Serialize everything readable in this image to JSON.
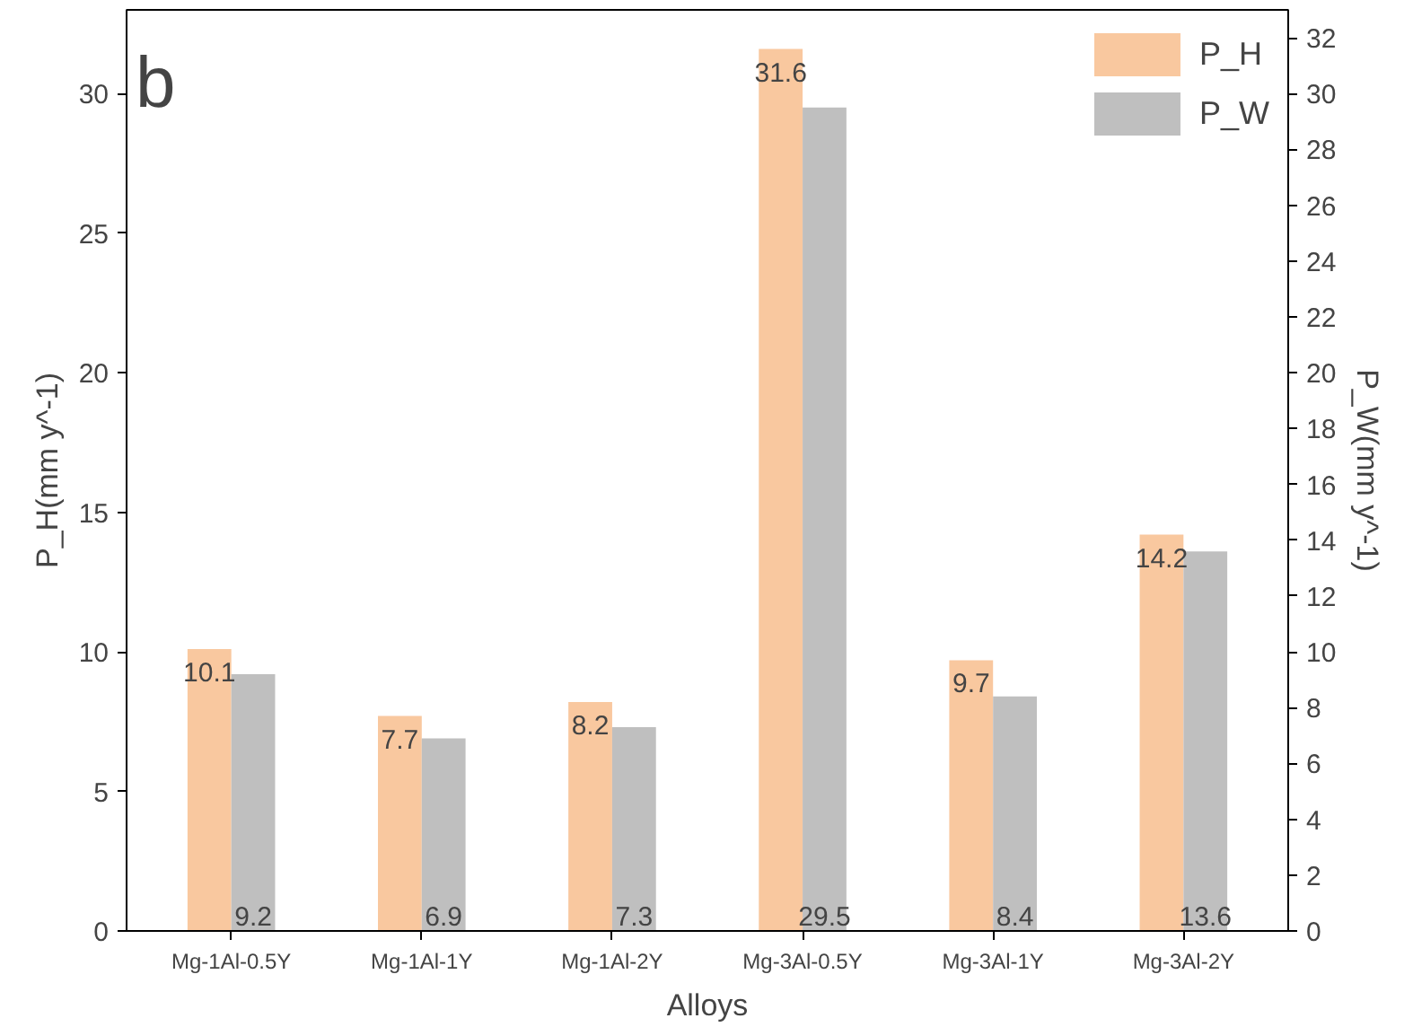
{
  "chart_data": {
    "type": "bar",
    "xlabel": "Alloys",
    "ylabel": "P_H(mm y^-1)",
    "y2label": "P_W(mm y^-1)",
    "categories": [
      "Mg-1Al-0.5Y",
      "Mg-1Al-1Y",
      "Mg-1Al-2Y",
      "Mg-3Al-0.5Y",
      "Mg-3Al-1Y",
      "Mg-3Al-2Y"
    ],
    "series": [
      {
        "name": "P_H",
        "color": "#f9c89f",
        "values": [
          10.1,
          7.7,
          8.2,
          31.6,
          9.7,
          14.2
        ]
      },
      {
        "name": "P_W",
        "color": "#bfbfbf",
        "values": [
          9.2,
          6.9,
          7.3,
          29.5,
          8.4,
          13.6
        ],
        "axis": "y2"
      }
    ],
    "ylim": [
      0,
      33
    ],
    "yticks": [
      0,
      5,
      10,
      15,
      20,
      25,
      30
    ],
    "y2lim": [
      0,
      33
    ],
    "y2ticks": [
      0,
      2,
      4,
      6,
      8,
      10,
      12,
      14,
      16,
      18,
      20,
      22,
      24,
      26,
      28,
      30,
      32
    ],
    "data_labels": true,
    "legend": "top right",
    "grid": false,
    "annotations": [
      "b"
    ]
  }
}
